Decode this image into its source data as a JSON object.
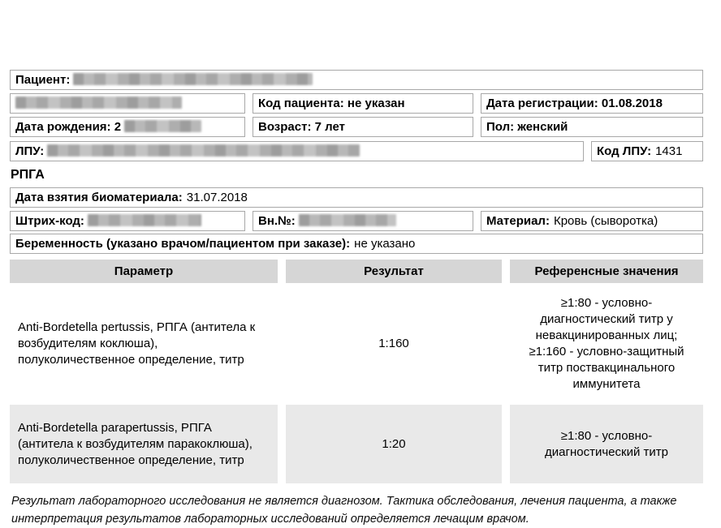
{
  "colors": {
    "box_border": "#a8a8a8",
    "table_header_bg": "#d6d6d6",
    "row_alt_bg": "#e9e9e9",
    "redaction_gray": "#aaaaaa"
  },
  "header": {
    "patient_label": "Пациент:",
    "patient_code": "Код пациента: не указан",
    "registration_date": "Дата регистрации: 01.08.2018",
    "birth_date": "Дата рождения: 2",
    "age": "Возраст: 7 лет",
    "sex": "Пол: женский",
    "lpu_label": "ЛПУ:",
    "lpu_code_label": "Код ЛПУ:",
    "lpu_code_value": "1431"
  },
  "test": {
    "section_title": "РПГА",
    "sampling_label": "Дата взятия биоматериала:",
    "sampling_value": "31.07.2018",
    "barcode_label": "Штрих-код:",
    "internal_number_label": "Вн.№:",
    "material_label": "Материал:",
    "material_value": "Кровь (сыворотка)",
    "pregnancy_label": "Беременность (указано врачом/пациентом при заказе):",
    "pregnancy_value": "не указано"
  },
  "results_table": {
    "headers": [
      "Параметр",
      "Результат",
      "Референсные значения"
    ],
    "rows": [
      {
        "parameter": "Anti-Bordetella pertussis, РПГА (антитела к возбудителям коклюша), полуколичественное определение, титр",
        "result": "1:160",
        "reference": "≥1:80 - условно-диагностический титр у невакцинированных лиц; ≥1:160 - условно-защитный титр поствакцинального иммунитета"
      },
      {
        "parameter": "Anti-Bordetella parapertussis, РПГА (антитела к возбудителям паракоклюша), полуколичественное определение, титр",
        "result": "1:20",
        "reference": "≥1:80 - условно-диагностический титр"
      }
    ]
  },
  "footer": {
    "line1": "Результат лабораторного исследования не является диагнозом. Тактика обследования, лечения пациента, а также",
    "line2": "интерпретация результатов лабораторных исследований определяется лечащим врачом."
  }
}
